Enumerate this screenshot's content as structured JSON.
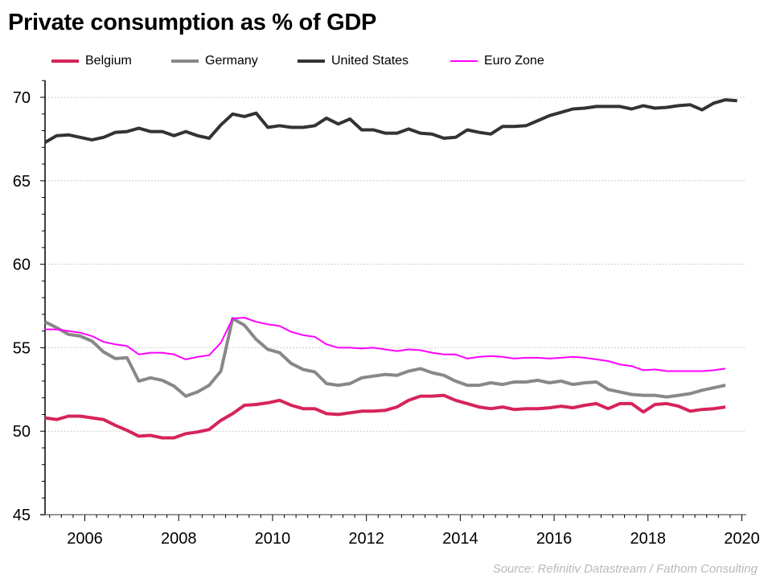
{
  "chart_data": {
    "type": "line",
    "title": "Private consumption as % of GDP",
    "xlabel": "",
    "ylabel": "",
    "source": "Source: Refinitiv Datastream / Fathom Consulting",
    "frequency": "quarterly",
    "start_period": "2005Q1",
    "xlim": [
      2005.15,
      2020.1
    ],
    "ylim": [
      45,
      71
    ],
    "x_ticks": [
      2006,
      2008,
      2010,
      2012,
      2014,
      2016,
      2018,
      2020
    ],
    "y_ticks": [
      45,
      50,
      55,
      60,
      65,
      70
    ],
    "grid": "horizontal dotted",
    "legend_position": "top",
    "series": [
      {
        "name": "Belgium",
        "color": "#d6245a",
        "values": [
          50.8,
          50.7,
          50.9,
          50.9,
          50.8,
          50.7,
          50.35,
          50.05,
          49.7,
          49.75,
          49.6,
          49.6,
          49.85,
          49.95,
          50.1,
          50.65,
          51.05,
          51.55,
          51.6,
          51.7,
          51.85,
          51.55,
          51.35,
          51.35,
          51.05,
          51.0,
          51.1,
          51.2,
          51.2,
          51.25,
          51.45,
          51.85,
          52.1,
          52.1,
          52.15,
          51.85,
          51.65,
          51.45,
          51.35,
          51.45,
          51.3,
          51.35,
          51.35,
          51.4,
          51.5,
          51.4,
          51.55,
          51.65,
          51.35,
          51.65,
          51.65,
          51.15,
          51.6,
          51.65,
          51.5,
          51.2,
          51.3,
          51.35,
          51.45
        ]
      },
      {
        "name": "Germany",
        "color": "#888888",
        "values": [
          56.55,
          56.2,
          55.8,
          55.7,
          55.4,
          54.75,
          54.35,
          54.4,
          53.0,
          53.2,
          53.05,
          52.7,
          52.1,
          52.35,
          52.75,
          53.6,
          56.75,
          56.35,
          55.5,
          54.9,
          54.7,
          54.05,
          53.7,
          53.55,
          52.85,
          52.75,
          52.85,
          53.2,
          53.3,
          53.4,
          53.35,
          53.6,
          53.75,
          53.5,
          53.35,
          53.0,
          52.75,
          52.75,
          52.9,
          52.8,
          52.95,
          52.95,
          53.05,
          52.9,
          53.0,
          52.8,
          52.9,
          52.95,
          52.5,
          52.35,
          52.2,
          52.15,
          52.15,
          52.05,
          52.15,
          52.25,
          52.45,
          52.6,
          52.75
        ]
      },
      {
        "name": "United States",
        "color": "#333333",
        "values": [
          67.3,
          67.7,
          67.75,
          67.6,
          67.45,
          67.6,
          67.9,
          67.95,
          68.15,
          67.95,
          67.95,
          67.7,
          67.95,
          67.7,
          67.55,
          68.35,
          69.0,
          68.85,
          69.05,
          68.2,
          68.3,
          68.2,
          68.2,
          68.3,
          68.75,
          68.4,
          68.7,
          68.05,
          68.05,
          67.85,
          67.85,
          68.1,
          67.85,
          67.8,
          67.55,
          67.6,
          68.05,
          67.9,
          67.8,
          68.25,
          68.25,
          68.3,
          68.6,
          68.9,
          69.1,
          69.3,
          69.35,
          69.45,
          69.45,
          69.45,
          69.3,
          69.5,
          69.35,
          69.4,
          69.5,
          69.55,
          69.25,
          69.65,
          69.85,
          69.8
        ]
      },
      {
        "name": "Euro Zone",
        "color": "#ff00ff",
        "values": [
          56.1,
          56.1,
          56.0,
          55.9,
          55.7,
          55.35,
          55.2,
          55.1,
          54.6,
          54.7,
          54.7,
          54.6,
          54.3,
          54.45,
          54.55,
          55.3,
          56.75,
          56.8,
          56.55,
          56.4,
          56.3,
          55.95,
          55.75,
          55.65,
          55.2,
          55.0,
          55.0,
          54.95,
          55.0,
          54.9,
          54.8,
          54.9,
          54.85,
          54.7,
          54.6,
          54.6,
          54.35,
          54.45,
          54.5,
          54.45,
          54.35,
          54.4,
          54.4,
          54.35,
          54.4,
          54.45,
          54.4,
          54.3,
          54.2,
          54.0,
          53.9,
          53.65,
          53.7,
          53.6,
          53.6,
          53.6,
          53.6,
          53.65,
          53.75
        ]
      }
    ]
  }
}
